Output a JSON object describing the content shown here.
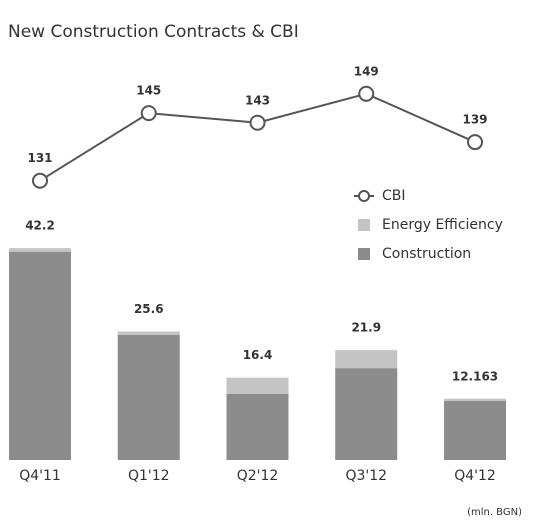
{
  "chart_data": {
    "type": "bar",
    "stacked": true,
    "title": "New Construction Contracts & CBI",
    "note": "(mln. BGN)",
    "categories": [
      "Q4'11",
      "Q1'12",
      "Q2'12",
      "Q3'12",
      "Q4'12"
    ],
    "series": [
      {
        "name": "Construction",
        "type": "bar",
        "color": "#8c8c8c",
        "values": [
          41.5,
          24.9,
          13.2,
          18.3,
          11.8
        ]
      },
      {
        "name": "Energy Efficiency",
        "type": "bar",
        "color": "#c4c4c4",
        "values": [
          0.7,
          0.7,
          3.2,
          3.6,
          0.4
        ]
      },
      {
        "name": "CBI",
        "type": "line",
        "axis": "y2",
        "color": "#555555",
        "values": [
          131,
          145,
          143,
          149,
          139
        ]
      }
    ],
    "total_labels": [
      42.2,
      25.6,
      16.4,
      21.9,
      12.163
    ],
    "ylim": [
      0,
      50
    ],
    "y2lim": [
      127,
      156
    ],
    "legend": "right",
    "grid": false
  }
}
